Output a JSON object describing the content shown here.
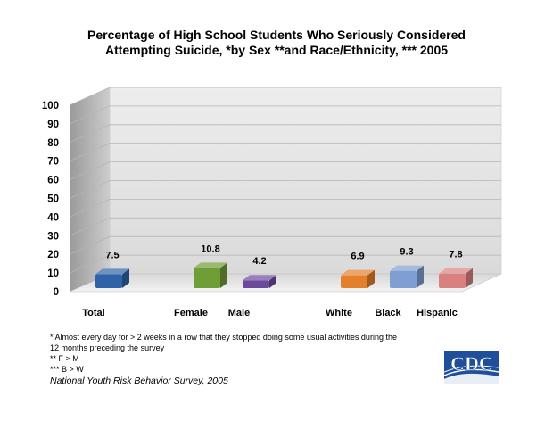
{
  "chart_data": {
    "type": "bar",
    "title_lines": [
      "Percentage of High School Students Who Seriously Considered",
      "Attempting Suicide, *by Sex **and Race/Ethnicity, *** 2005"
    ],
    "categories": [
      "Total",
      "Female",
      "Male",
      "White",
      "Black",
      "Hispanic"
    ],
    "values": [
      7.5,
      10.8,
      4.2,
      6.9,
      9.3,
      7.8
    ],
    "colors": [
      "#2f62a6",
      "#6f9d36",
      "#6b4a9e",
      "#e4802c",
      "#7f9fd3",
      "#d98081"
    ],
    "ylim": [
      0,
      100
    ],
    "yticks": [
      0,
      10,
      20,
      30,
      40,
      50,
      60,
      70,
      80,
      90,
      100
    ],
    "xlabel": "",
    "ylabel": "",
    "grid": true
  },
  "footnotes": {
    "line1": "* Almost every day for > 2 weeks in a row that they stopped doing some usual activities during the",
    "line2": "12 months preceding the survey",
    "line3": "** F > M",
    "line4": "*** B > W",
    "source": "National Youth Risk Behavior Survey, 2005"
  },
  "logo": {
    "text": "CDC",
    "color": "#1f4e9a"
  }
}
